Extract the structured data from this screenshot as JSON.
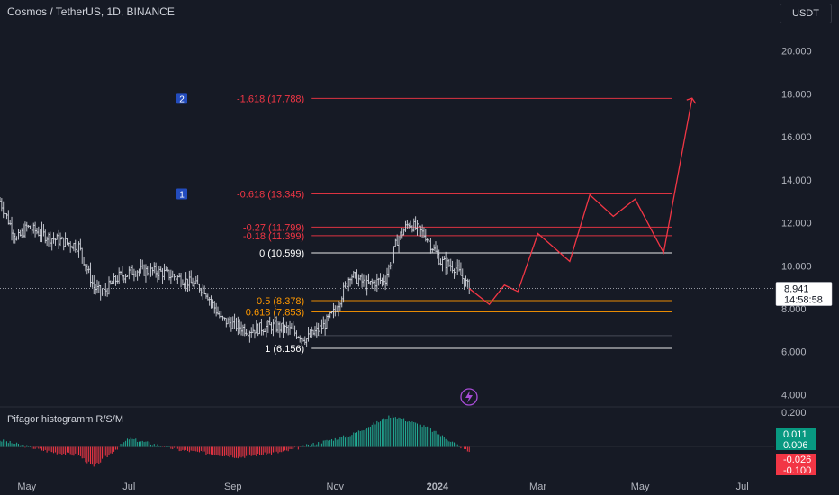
{
  "header": {
    "symbol": "Cosmos / TetherUS, 1D, BINANCE",
    "currency": "USDT"
  },
  "indicator": {
    "title": "Pifagor histogramm R/S/M"
  },
  "price_axis": {
    "ticks": [
      "20.000",
      "18.000",
      "16.000",
      "14.000",
      "12.000",
      "10.000",
      "8.000",
      "6.000",
      "4.000"
    ]
  },
  "indicator_axis": {
    "ticks": [
      "0.200"
    ]
  },
  "time_axis": {
    "labels": [
      "May",
      "Jul",
      "Sep",
      "Nov",
      "2024",
      "Mar",
      "May",
      "Jul"
    ]
  },
  "last_price": {
    "value": "8.941",
    "countdown": "14:58:58"
  },
  "indicator_badges": [
    "0.011",
    "0.006",
    "-0.026",
    "-0.100"
  ],
  "fib_markers": [
    "2",
    "1"
  ],
  "fib_levels": [
    {
      "label": "-1.618 (17.788)",
      "price": 17.788,
      "color": "#f23645"
    },
    {
      "label": "-0.618 (13.345)",
      "price": 13.345,
      "color": "#f23645"
    },
    {
      "label": "-0.27 (11.799)",
      "price": 11.799,
      "color": "#f23645"
    },
    {
      "label": "-0.18 (11.399)",
      "price": 11.399,
      "color": "#f23645"
    },
    {
      "label": "0 (10.599)",
      "price": 10.599,
      "color": "#ffffff"
    },
    {
      "label": "0.5 (8.378)",
      "price": 8.378,
      "color": "#ff9800"
    },
    {
      "label": "0.618 (7.853)",
      "price": 7.853,
      "color": "#ff9800"
    },
    {
      "label": "1 (6.156)",
      "price": 6.156,
      "color": "#ffffff"
    }
  ],
  "colors": {
    "background": "#161a25",
    "candle": "#d1d4dc",
    "projection": "#f23645",
    "hist_up": "#22ab94",
    "hist_down": "#f23645"
  },
  "chart_data": {
    "type": "candlestick",
    "x_range": [
      "2023-04-15",
      "2024-07-20"
    ],
    "ylim": [
      3.6,
      21.2
    ],
    "price_anchors": [
      [
        "2023-04-15",
        13.0
      ],
      [
        "2023-04-25",
        11.2
      ],
      [
        "2023-05-01",
        11.8
      ],
      [
        "2023-05-15",
        11.3
      ],
      [
        "2023-06-01",
        10.9
      ],
      [
        "2023-06-10",
        9.0
      ],
      [
        "2023-06-15",
        8.7
      ],
      [
        "2023-06-25",
        9.5
      ],
      [
        "2023-07-05",
        9.8
      ],
      [
        "2023-07-20",
        9.7
      ],
      [
        "2023-08-01",
        9.4
      ],
      [
        "2023-08-15",
        8.9
      ],
      [
        "2023-08-25",
        7.5
      ],
      [
        "2023-09-10",
        7.0
      ],
      [
        "2023-09-25",
        7.2
      ],
      [
        "2023-10-05",
        7.0
      ],
      [
        "2023-10-15",
        6.6
      ],
      [
        "2023-10-25",
        7.2
      ],
      [
        "2023-11-01",
        7.9
      ],
      [
        "2023-11-10",
        9.6
      ],
      [
        "2023-11-20",
        9.1
      ],
      [
        "2023-12-01",
        9.4
      ],
      [
        "2023-12-08",
        11.2
      ],
      [
        "2023-12-15",
        12.0
      ],
      [
        "2023-12-25",
        11.4
      ],
      [
        "2024-01-03",
        10.2
      ],
      [
        "2024-01-12",
        9.9
      ],
      [
        "2024-01-20",
        8.94
      ]
    ],
    "projection": [
      [
        "2024-01-20",
        8.94
      ],
      [
        "2024-02-01",
        8.2
      ],
      [
        "2024-02-10",
        9.1
      ],
      [
        "2024-02-18",
        8.8
      ],
      [
        "2024-03-01",
        11.5
      ],
      [
        "2024-03-20",
        10.2
      ],
      [
        "2024-04-01",
        13.3
      ],
      [
        "2024-04-15",
        12.3
      ],
      [
        "2024-04-28",
        13.1
      ],
      [
        "2024-05-15",
        10.6
      ],
      [
        "2024-06-01",
        17.8
      ]
    ],
    "histogram_anchors": [
      [
        "2023-04-15",
        0.04
      ],
      [
        "2023-05-15",
        -0.03
      ],
      [
        "2023-06-01",
        -0.05
      ],
      [
        "2023-06-10",
        -0.12
      ],
      [
        "2023-07-01",
        0.05
      ],
      [
        "2023-08-01",
        -0.02
      ],
      [
        "2023-09-05",
        -0.06
      ],
      [
        "2023-10-01",
        -0.03
      ],
      [
        "2023-10-20",
        0.02
      ],
      [
        "2023-11-10",
        0.07
      ],
      [
        "2023-12-05",
        0.19
      ],
      [
        "2023-12-25",
        0.12
      ],
      [
        "2024-01-10",
        0.03
      ],
      [
        "2024-01-20",
        -0.03
      ]
    ],
    "hist_ylim": [
      -0.13,
      0.21
    ]
  }
}
